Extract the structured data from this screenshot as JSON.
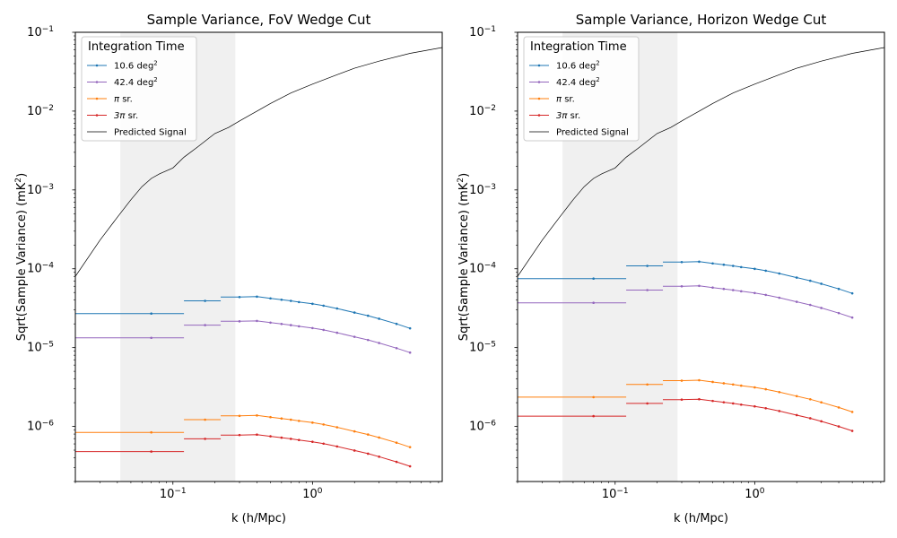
{
  "chart_data": [
    {
      "type": "line",
      "title": "Sample Variance, FoV Wedge Cut",
      "xlabel": "k (h/Mpc)",
      "ylabel": "Sqrt(Sample Variance) (mK$^2$)",
      "xscale": "log",
      "yscale": "log",
      "xlim": [
        0.02,
        8.5
      ],
      "ylim": [
        2e-07,
        0.1
      ],
      "grid": false,
      "shaded_k_range": [
        0.042,
        0.28
      ],
      "legend": {
        "title": "Integration Time",
        "placement": "top-left"
      },
      "series": [
        {
          "name": "10.6 deg$^2$",
          "color": "#1f77b4",
          "amp": 2.7e-05
        },
        {
          "name": "42.4 deg$^2$",
          "color": "#9467bd",
          "amp": 1.33e-05
        },
        {
          "name": "$\\pi$ sr.",
          "color": "#ff7f0e",
          "amp": 8.4e-07
        },
        {
          "name": "$3\\pi$ sr.",
          "color": "#d62728",
          "amp": 4.8e-07
        },
        {
          "name": "Predicted Signal",
          "color": "#000000",
          "style": "thin-line",
          "x": [
            0.02,
            0.03,
            0.04,
            0.05,
            0.06,
            0.07,
            0.08,
            0.1,
            0.12,
            0.15,
            0.18,
            0.2,
            0.25,
            0.3,
            0.4,
            0.5,
            0.7,
            1.0,
            1.5,
            2.0,
            3.0,
            5.0,
            8.5
          ],
          "y": [
            8e-05,
            0.00023,
            0.00045,
            0.00075,
            0.0011,
            0.0014,
            0.0016,
            0.0019,
            0.0026,
            0.0035,
            0.0045,
            0.0052,
            0.0062,
            0.0075,
            0.01,
            0.0125,
            0.017,
            0.022,
            0.029,
            0.035,
            0.043,
            0.054,
            0.064
          ]
        }
      ],
      "binned_x": [
        0.07,
        0.17,
        0.3,
        0.4,
        0.5,
        0.6,
        0.7,
        0.8,
        1.0,
        1.2,
        1.5,
        2.0,
        2.5,
        3.0,
        4.0,
        5.0
      ],
      "binned_shape": [
        1.0,
        1.45,
        1.62,
        1.64,
        1.56,
        1.5,
        1.45,
        1.4,
        1.33,
        1.26,
        1.16,
        1.03,
        0.94,
        0.86,
        0.74,
        0.65
      ],
      "bin_edges": [
        0.02,
        0.12,
        0.22,
        5.0
      ]
    },
    {
      "type": "line",
      "title": "Sample Variance, Horizon Wedge Cut",
      "xlabel": "k (h/Mpc)",
      "ylabel": "Sqrt(Sample Variance) (mK$^2$)",
      "xscale": "log",
      "yscale": "log",
      "xlim": [
        0.02,
        8.5
      ],
      "ylim": [
        2e-07,
        0.1
      ],
      "grid": false,
      "shaded_k_range": [
        0.042,
        0.28
      ],
      "legend": {
        "title": "Integration Time",
        "placement": "top-left"
      },
      "series": [
        {
          "name": "10.6 deg$^2$",
          "color": "#1f77b4",
          "amp": 7.5e-05
        },
        {
          "name": "42.4 deg$^2$",
          "color": "#9467bd",
          "amp": 3.7e-05
        },
        {
          "name": "$\\pi$ sr.",
          "color": "#ff7f0e",
          "amp": 2.35e-06
        },
        {
          "name": "$3\\pi$ sr.",
          "color": "#d62728",
          "amp": 1.35e-06
        },
        {
          "name": "Predicted Signal",
          "color": "#000000",
          "style": "thin-line",
          "x": [
            0.02,
            0.03,
            0.04,
            0.05,
            0.06,
            0.07,
            0.08,
            0.1,
            0.12,
            0.15,
            0.18,
            0.2,
            0.25,
            0.3,
            0.4,
            0.5,
            0.7,
            1.0,
            1.5,
            2.0,
            3.0,
            5.0,
            8.5
          ],
          "y": [
            8e-05,
            0.00023,
            0.00045,
            0.00075,
            0.0011,
            0.0014,
            0.0016,
            0.0019,
            0.0026,
            0.0035,
            0.0045,
            0.0052,
            0.0062,
            0.0075,
            0.01,
            0.0125,
            0.017,
            0.022,
            0.029,
            0.035,
            0.043,
            0.054,
            0.064
          ]
        }
      ],
      "binned_x": [
        0.07,
        0.17,
        0.3,
        0.4,
        0.5,
        0.6,
        0.7,
        0.8,
        1.0,
        1.2,
        1.5,
        2.0,
        2.5,
        3.0,
        4.0,
        5.0
      ],
      "binned_shape": [
        1.0,
        1.45,
        1.62,
        1.64,
        1.56,
        1.5,
        1.45,
        1.4,
        1.33,
        1.26,
        1.16,
        1.03,
        0.94,
        0.86,
        0.74,
        0.65
      ],
      "bin_edges": [
        0.02,
        0.12,
        0.22,
        5.0
      ]
    }
  ]
}
